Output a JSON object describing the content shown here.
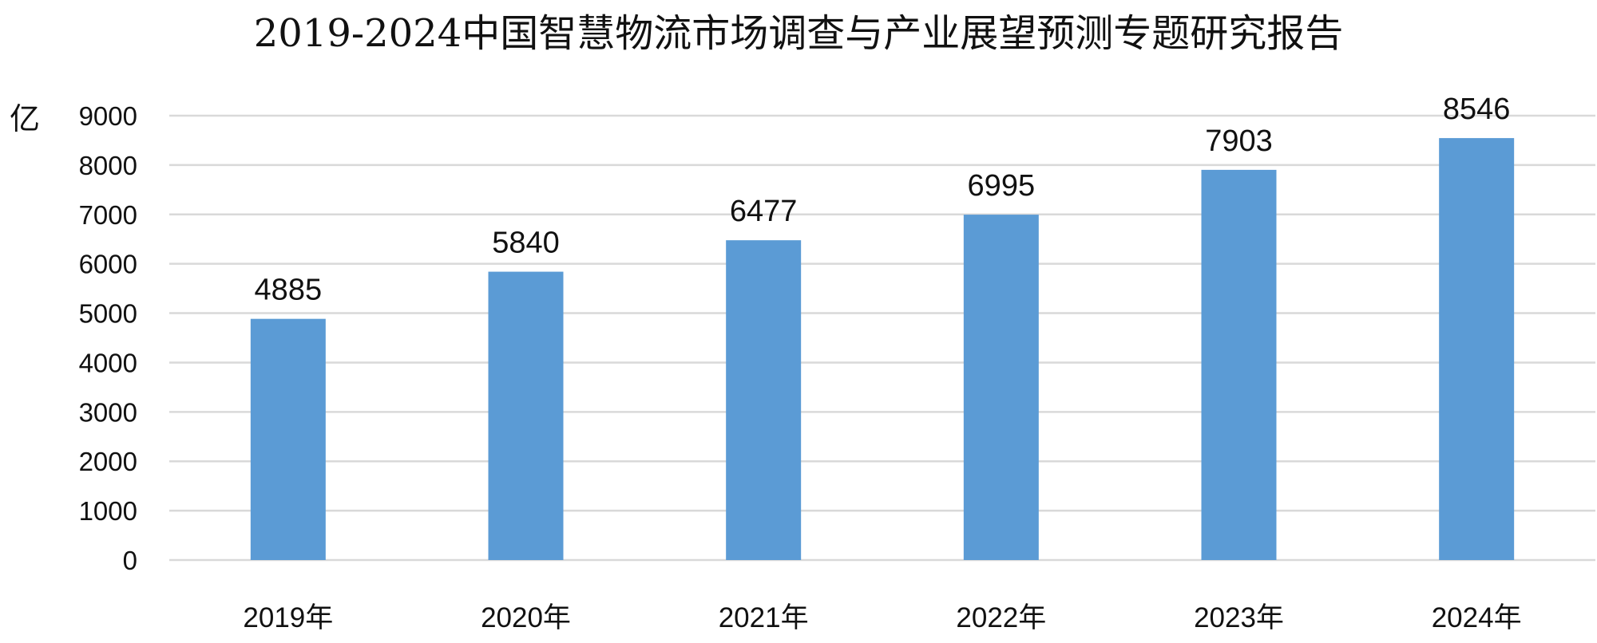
{
  "chart_data": {
    "type": "bar",
    "title": "2019-2024中国智慧物流市场调查与产业展望预测专题研究报告",
    "ylabel": "亿",
    "xlabel": "",
    "categories": [
      "2019年",
      "2020年",
      "2021年",
      "2022年",
      "2023年",
      "2024年"
    ],
    "series": [
      {
        "values": [
          4885,
          5840,
          6477,
          6995,
          7903,
          8546
        ],
        "color": "#5b9bd5"
      }
    ],
    "data_labels": [
      "4885",
      "5840",
      "6477",
      "6995",
      "7903",
      "8546"
    ],
    "ylim": [
      0,
      9000
    ],
    "yticks": [
      "0",
      "1000",
      "2000",
      "3000",
      "4000",
      "5000",
      "6000",
      "7000",
      "8000",
      "9000"
    ],
    "grid": true,
    "legend": "none"
  }
}
